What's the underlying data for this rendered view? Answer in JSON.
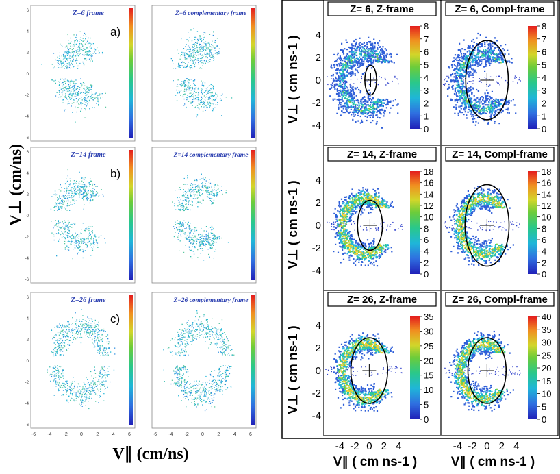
{
  "colors": {
    "scale": [
      "#2b2bd0",
      "#2a7fd6",
      "#22b8d8",
      "#29c48e",
      "#5cc83c",
      "#c8d52e",
      "#f0a02a",
      "#e83a22"
    ],
    "panel_frame": "#000000",
    "label_blue": "#2b3fb0"
  },
  "figure": {
    "left_ylabel": "V⊥ (cm/ns)",
    "left_xlabel": "V∥ (cm/ns)",
    "right_ylabel": "V⊥ ( cm ns-1 )",
    "right_xlabel": "V∥ ( cm ns-1 )"
  },
  "chart_data": [
    {
      "type": "scatter",
      "group": "left",
      "rows": [
        {
          "letter": "a)",
          "z_frame_title": "Z=6 frame",
          "compl_frame_title": "Z=6 complementary frame"
        },
        {
          "letter": "b)",
          "z_frame_title": "Z=14 frame",
          "compl_frame_title": "Z=14 complementary frame"
        },
        {
          "letter": "c)",
          "z_frame_title": "Z=26 frame",
          "compl_frame_title": "Z=26 complementary frame"
        }
      ],
      "x_ticks": [
        "-6",
        "-4",
        "-2",
        "0",
        "2",
        "4",
        "6"
      ],
      "xlim": [
        -6,
        6
      ],
      "ylim": [
        -6,
        6
      ],
      "y_ticks": [
        "6",
        "4",
        "2",
        "0",
        "-2",
        "-4",
        "-6"
      ],
      "colorbar_ticks": []
    },
    {
      "type": "heatmap",
      "group": "right",
      "xlim": [
        -6,
        5
      ],
      "ylim": [
        -5.5,
        5.5
      ],
      "x_ticks": [
        "-4",
        "-2",
        "0",
        "2",
        "4"
      ],
      "y_ticks": [
        "4",
        "2",
        "0",
        "-2",
        "-4"
      ],
      "panels": [
        {
          "title": "Z= 6, Z-frame",
          "circle": {
            "cx": 0.2,
            "cy": 0,
            "rx": 0.8,
            "ry": 1.3
          },
          "colorbar_ticks": [
            "8",
            "7",
            "6",
            "5",
            "4",
            "3",
            "2",
            "1",
            "0"
          ],
          "zmax": 8
        },
        {
          "title": "Z= 6, Compl-frame",
          "circle": {
            "cx": 0,
            "cy": 0,
            "rx": 2.9,
            "ry": 3.5
          },
          "colorbar_ticks": [
            "8",
            "7",
            "6",
            "5",
            "4",
            "3",
            "2",
            "1",
            "0"
          ],
          "zmax": 8
        },
        {
          "title": "Z= 14, Z-frame",
          "circle": {
            "cx": 0.1,
            "cy": 0,
            "rx": 1.7,
            "ry": 2.2
          },
          "colorbar_ticks": [
            "18",
            "16",
            "14",
            "12",
            "10",
            "8",
            "6",
            "4",
            "2",
            "0"
          ],
          "zmax": 18
        },
        {
          "title": "Z= 14, Compl-frame",
          "circle": {
            "cx": 0,
            "cy": 0,
            "rx": 3.0,
            "ry": 3.6
          },
          "colorbar_ticks": [
            "18",
            "16",
            "14",
            "12",
            "10",
            "8",
            "6",
            "4",
            "2",
            "0"
          ],
          "zmax": 18
        },
        {
          "title": "Z= 26, Z-frame",
          "circle": {
            "cx": 0,
            "cy": 0,
            "rx": 2.5,
            "ry": 2.9
          },
          "colorbar_ticks": [
            "35",
            "30",
            "25",
            "20",
            "15",
            "10",
            "5",
            "0"
          ],
          "zmax": 35
        },
        {
          "title": "Z= 26, Compl-frame",
          "circle": {
            "cx": 0,
            "cy": 0,
            "rx": 2.6,
            "ry": 2.9
          },
          "colorbar_ticks": [
            "40",
            "35",
            "30",
            "25",
            "20",
            "15",
            "10",
            "5",
            "0"
          ],
          "zmax": 40
        }
      ]
    }
  ]
}
